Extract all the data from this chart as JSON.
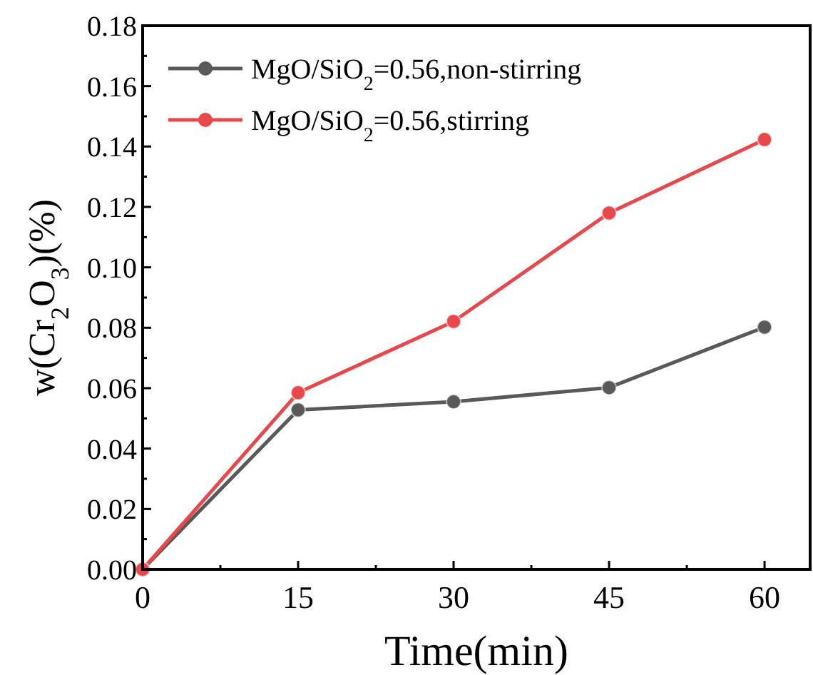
{
  "chart_data": {
    "type": "line",
    "xlabel": "Time(min)",
    "ylabel": "w(Cr$_{2}$O$_{3}$)(%)",
    "x": [
      0,
      15,
      30,
      45,
      60
    ],
    "series": [
      {
        "name": "MgO/SiO$_{2}$=0.56,non-stirring",
        "color": "#595959",
        "values": [
          0,
          0.0528,
          0.0555,
          0.0602,
          0.0802
        ]
      },
      {
        "name": "MgO/SiO$_{2}$=0.56,stirring",
        "color": "#e8474c",
        "values": [
          0,
          0.0585,
          0.0821,
          0.118,
          0.1423
        ]
      }
    ],
    "xlim": [
      0,
      64.4
    ],
    "xticks": [
      0,
      15,
      30,
      45,
      60
    ],
    "ylim": [
      0,
      0.18
    ],
    "yticks": [
      {
        "value": 0,
        "label": "0.00"
      },
      {
        "value": 0.02,
        "label": "0.02"
      },
      {
        "value": 0.04,
        "label": "0.04"
      },
      {
        "value": 0.06,
        "label": "0.06"
      },
      {
        "value": 0.08,
        "label": "0.08"
      },
      {
        "value": 0.1,
        "label": "0.10"
      },
      {
        "value": 0.12,
        "label": "0.12"
      },
      {
        "value": 0.14,
        "label": "0.14"
      },
      {
        "value": 0.16,
        "label": "0.16"
      },
      {
        "value": 0.18,
        "label": "0.18"
      }
    ],
    "legend": "top left",
    "marker": "circle",
    "line_style": "solid",
    "grid": false
  }
}
